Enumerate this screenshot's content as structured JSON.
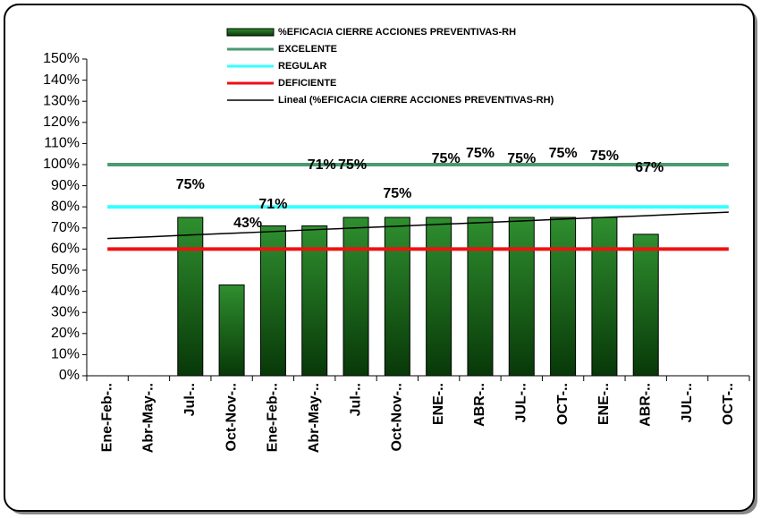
{
  "chart_data": {
    "type": "bar",
    "categories": [
      "Ene-Feb-..",
      "Abr-May-..",
      "Jul-..",
      "Oct-Nov-..",
      "Ene-Feb-..",
      "Abr-May-..",
      "Jul-..",
      "Oct-Nov-..",
      "ENE-..",
      "ABR-..",
      "JUL-..",
      "OCT-..",
      "ENE-..",
      "ABR-..",
      "JUL-..",
      "OCT-.."
    ],
    "series": [
      {
        "name": "%EFICACIA CIERRE ACCIONES PREVENTIVAS-RH",
        "color": "#1e6b1e",
        "values": [
          null,
          null,
          75,
          43,
          71,
          71,
          75,
          75,
          75,
          75,
          75,
          75,
          75,
          67,
          null,
          null
        ],
        "value_labels": [
          null,
          null,
          "75%",
          "43%",
          "71%",
          "71%",
          "75%",
          "75%",
          "75%",
          "75%",
          "75%",
          "75%",
          "75%",
          "67%",
          null,
          null
        ]
      },
      {
        "name": "EXCELENTE",
        "type": "line",
        "color": "#4a9a70",
        "values": [
          100,
          100,
          100,
          100,
          100,
          100,
          100,
          100,
          100,
          100,
          100,
          100,
          100,
          100,
          100,
          100
        ]
      },
      {
        "name": "REGULAR",
        "type": "line",
        "color": "#33ffff",
        "values": [
          80,
          80,
          80,
          80,
          80,
          80,
          80,
          80,
          80,
          80,
          80,
          80,
          80,
          80,
          80,
          80
        ]
      },
      {
        "name": "DEFICIENTE",
        "type": "line",
        "color": "#ee1111",
        "values": [
          60,
          60,
          60,
          60,
          60,
          60,
          60,
          60,
          60,
          60,
          60,
          60,
          60,
          60,
          60,
          60
        ]
      },
      {
        "name": "Lineal (%EFICACIA CIERRE ACCIONES PREVENTIVAS-RH)",
        "type": "line",
        "color": "#000000",
        "values": [
          65,
          65.8,
          66.7,
          67.5,
          68.3,
          69.2,
          70,
          70.8,
          71.7,
          72.5,
          73.3,
          74.2,
          75,
          75.8,
          76.7,
          77.5
        ]
      }
    ],
    "ylim": [
      0,
      150
    ],
    "yticks": [
      {
        "value": 0,
        "label": "0%"
      },
      {
        "value": 10,
        "label": "10%"
      },
      {
        "value": 20,
        "label": "20%"
      },
      {
        "value": 30,
        "label": "30%"
      },
      {
        "value": 40,
        "label": "40%"
      },
      {
        "value": 50,
        "label": "50%"
      },
      {
        "value": 60,
        "label": "60%"
      },
      {
        "value": 70,
        "label": "70%"
      },
      {
        "value": 80,
        "label": "80%"
      },
      {
        "value": 90,
        "label": "90%"
      },
      {
        "value": 100,
        "label": "100%"
      },
      {
        "value": 110,
        "label": "110%"
      },
      {
        "value": 120,
        "label": "120%"
      },
      {
        "value": 130,
        "label": "130%"
      },
      {
        "value": 140,
        "label": "140%"
      },
      {
        "value": 150,
        "label": "150%"
      }
    ],
    "legend": "top"
  }
}
